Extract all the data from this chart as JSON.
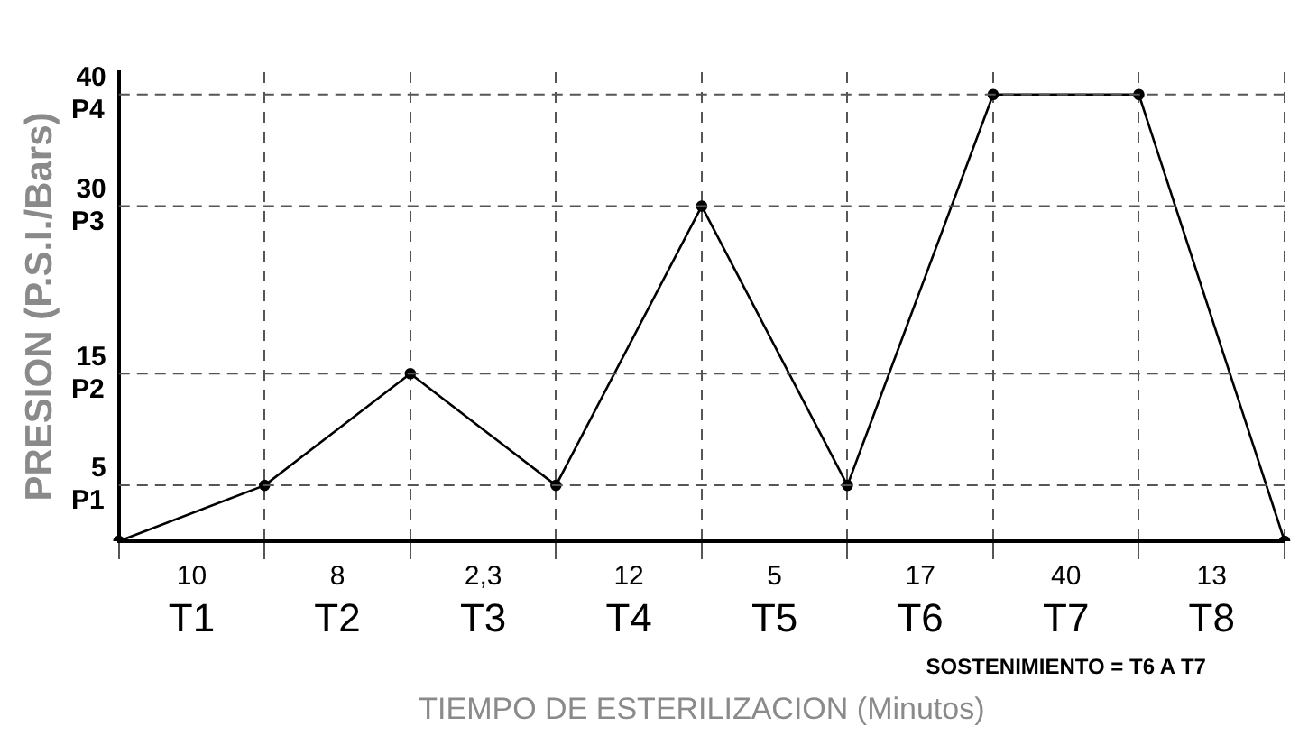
{
  "chart_data": {
    "type": "line",
    "ylabel": "PRESION (P.S.I./Bars)",
    "xlabel": "TIEMPO DE ESTERILIZACION (Minutos)",
    "categories": [
      null,
      null,
      null,
      null,
      null,
      null,
      null,
      null,
      null
    ],
    "series": [
      {
        "color": "#000000",
        "values": [
          0,
          5,
          15,
          5,
          30,
          5,
          40,
          40,
          0
        ]
      }
    ],
    "ylim": [
      0,
      42
    ],
    "yticks": [
      5,
      15,
      30,
      40
    ],
    "annotations": [
      "10\nT1",
      "8\nT2",
      "2,3\nT3",
      "12\nT4",
      "5\nT5",
      "17\nT6",
      "40\nT7",
      "13\nT8",
      "SOSTENIMIENTO = T6 A T7"
    ],
    "ref_lines": [
      {
        "axis": "y",
        "value": 5,
        "label": "P1",
        "line_style": "dashed"
      },
      {
        "axis": "y",
        "value": 15,
        "label": "P2",
        "line_style": "dashed"
      },
      {
        "axis": "y",
        "value": 30,
        "label": "P3",
        "line_style": "dashed"
      },
      {
        "axis": "y",
        "value": 40,
        "label": "P4",
        "line_style": "dashed"
      }
    ],
    "grid": "x",
    "legend": false,
    "marker": "circle",
    "line_style": "solid"
  }
}
